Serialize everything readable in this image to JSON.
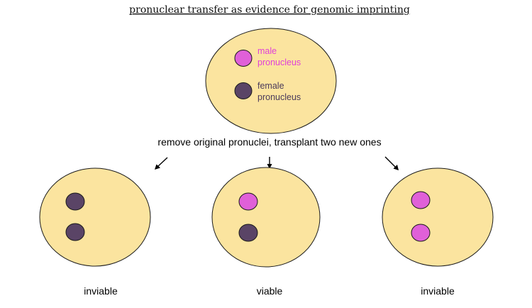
{
  "title": "pronuclear transfer as evidence for genomic imprinting",
  "instruction": "remove original pronuclei, transplant two new ones",
  "colors": {
    "cytoplasm": "#fbe49f",
    "male": "#e060d8",
    "female": "#5a4466",
    "male_text": "#e040d8",
    "female_text": "#4a3a5a"
  },
  "legend": {
    "male_line1": "male",
    "male_line2": "pronucleus",
    "female_line1": "female",
    "female_line2": "pronucleus"
  },
  "outcomes": [
    {
      "label": "inviable",
      "pronuclei": [
        "female",
        "female"
      ]
    },
    {
      "label": "viable",
      "pronuclei": [
        "male",
        "female"
      ]
    },
    {
      "label": "inviable",
      "pronuclei": [
        "male",
        "male"
      ]
    }
  ]
}
